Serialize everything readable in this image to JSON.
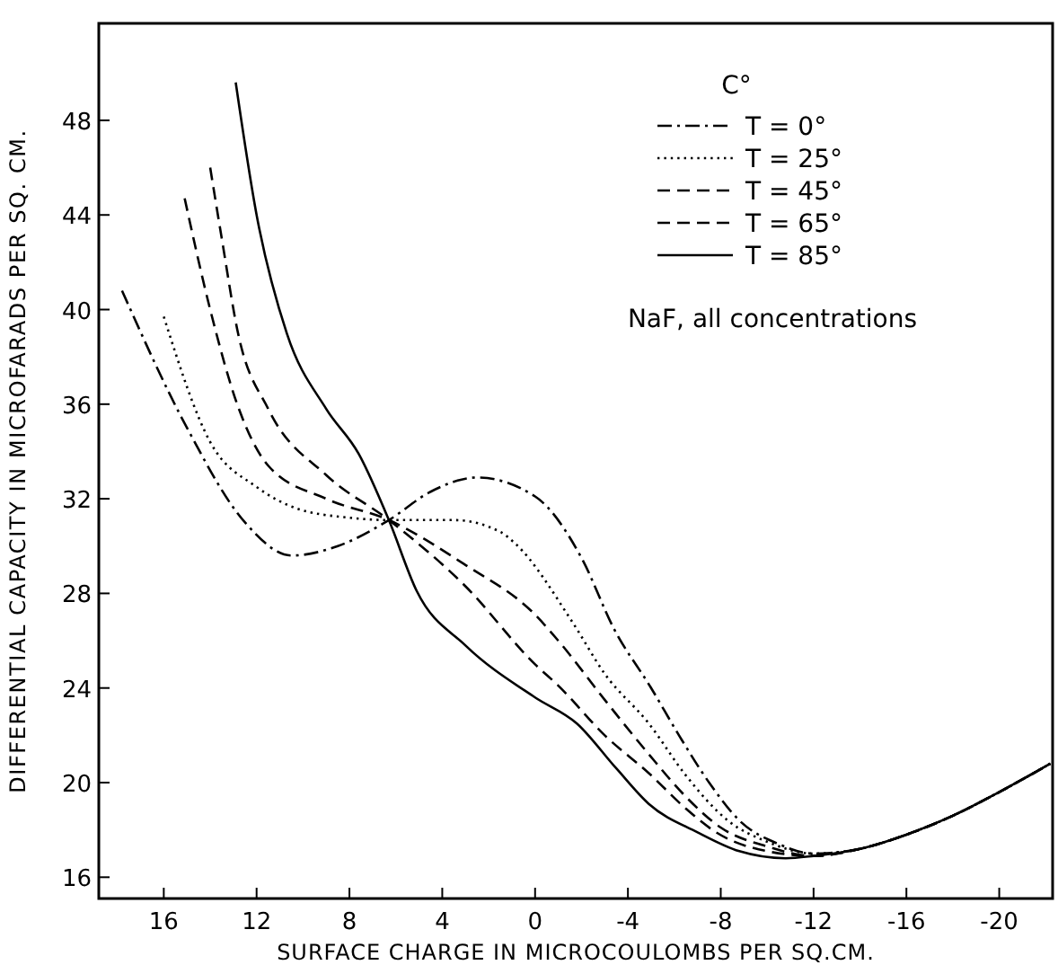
{
  "chart_data": {
    "type": "line",
    "xlabel": "SURFACE CHARGE IN MICROCOULOMBS PER SQ.CM.",
    "ylabel": "DIFFERENTIAL CAPACITY IN MICROFARADS PER SQ. CM.",
    "legend_title": "C°",
    "legend": "top right",
    "annotations": [
      "NaF, all concentrations"
    ],
    "xlim": [
      18.8,
      -22.3
    ],
    "ylim": [
      15.1,
      52.1
    ],
    "xticks": [
      16,
      12,
      8,
      4,
      0,
      -4,
      -8,
      -12,
      -16,
      -20
    ],
    "yticks": [
      16,
      20,
      24,
      28,
      32,
      36,
      40,
      44,
      48
    ],
    "grid": false,
    "series": [
      {
        "name": "T = 0°",
        "color": "#000000",
        "line_style": "dashdot",
        "x": [
          17.8,
          15,
          12.5,
          10.5,
          8.5,
          6.3,
          4.5,
          2.5,
          0,
          -2,
          -3.4,
          -5,
          -6.2,
          -7.5,
          -8.8,
          -10.5,
          -12,
          -14,
          -16,
          -18,
          -20,
          -22.2
        ],
        "values": [
          40.8,
          35,
          31,
          29.6,
          30,
          31.1,
          32.3,
          32.9,
          32.1,
          29.5,
          26.5,
          24,
          22,
          20,
          18.4,
          17.4,
          17,
          17.2,
          17.8,
          18.6,
          19.6,
          20.8
        ]
      },
      {
        "name": "T = 25°",
        "color": "#000000",
        "line_style": "dotted",
        "x": [
          16,
          14,
          12,
          10.3,
          8,
          6.3,
          3.5,
          1.5,
          0.85,
          -1.6,
          -3,
          -4.9,
          -6.5,
          -8.3,
          -10,
          -12,
          -14,
          -16,
          -18,
          -20,
          -22.2
        ],
        "values": [
          39.7,
          34.4,
          32.5,
          31.6,
          31.2,
          31.1,
          31.1,
          30.6,
          30.1,
          26.8,
          24.6,
          22.5,
          20.3,
          18.4,
          17.5,
          17,
          17.2,
          17.8,
          18.6,
          19.6,
          20.8
        ]
      },
      {
        "name": "T = 45°",
        "color": "#000000",
        "line_style": "dashed",
        "x": [
          15.1,
          14,
          12.8,
          11.5,
          9,
          6.3,
          3,
          0,
          -1,
          -3,
          -4.9,
          -6.5,
          -8,
          -10,
          -12,
          -14,
          -16,
          -18,
          -20,
          -22.2
        ],
        "values": [
          44.7,
          40,
          35.9,
          33.4,
          32,
          31.1,
          29.2,
          27.1,
          26,
          23.5,
          21.2,
          19.4,
          18.1,
          17.3,
          16.9,
          17.2,
          17.8,
          18.6,
          19.6,
          20.8
        ]
      },
      {
        "name": "T = 65°",
        "color": "#000000",
        "line_style": "dashed",
        "x": [
          14,
          13.5,
          12.8,
          11.5,
          9,
          6.3,
          3,
          0,
          -1,
          -3,
          -4.9,
          -6.5,
          -7.8,
          -10,
          -12,
          -14,
          -16,
          -18,
          -20,
          -22.2
        ],
        "values": [
          46,
          43,
          39,
          35.8,
          33,
          31.1,
          28.3,
          25,
          24.1,
          22,
          20.4,
          18.9,
          17.9,
          17.1,
          16.9,
          17.2,
          17.8,
          18.6,
          19.6,
          20.8
        ]
      },
      {
        "name": "T = 85°",
        "color": "#000000",
        "line_style": "solid",
        "x": [
          12.9,
          12,
          10.7,
          9,
          7.6,
          6.3,
          5.1,
          3,
          0,
          -1.8,
          -3.5,
          -4.9,
          -7,
          -8.8,
          -10.8,
          -12,
          -14,
          -16,
          -18,
          -20,
          -22.2
        ],
        "values": [
          49.6,
          44,
          39,
          35.8,
          33.9,
          31.1,
          28.1,
          25.8,
          23.6,
          22.5,
          20.6,
          19.1,
          17.9,
          17.1,
          16.8,
          16.9,
          17.2,
          17.8,
          18.6,
          19.6,
          20.8
        ]
      }
    ]
  }
}
